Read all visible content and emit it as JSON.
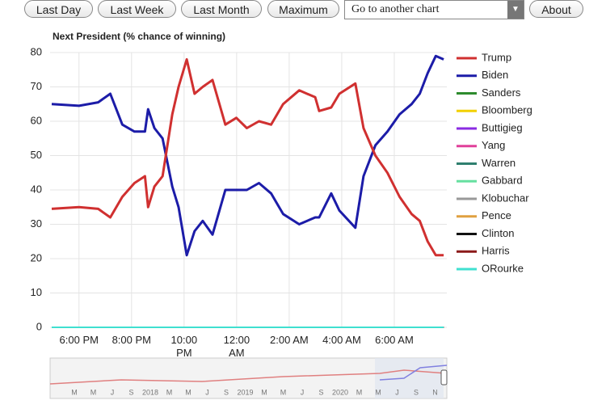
{
  "controls": {
    "buttons": [
      "Last Day",
      "Last Week",
      "Last Month",
      "Maximum"
    ],
    "select": "Go to another chart",
    "about": "About"
  },
  "navigator_labels": [
    "M",
    "M",
    "J",
    "S",
    "2018",
    "M",
    "M",
    "J",
    "S",
    "2019",
    "M",
    "M",
    "J",
    "S",
    "2020",
    "M",
    "M",
    "J",
    "S",
    "N"
  ],
  "chart_data": {
    "type": "line",
    "title": "Next President (% chance of winning)",
    "x": [
      16.96,
      18.0,
      18.73,
      19.19,
      19.65,
      20.11,
      20.51,
      20.63,
      20.87,
      21.18,
      21.55,
      21.79,
      22.1,
      22.4,
      22.71,
      23.08,
      23.57,
      23.99,
      24.39,
      24.85,
      25.31,
      25.77,
      26.38,
      26.99,
      27.14,
      27.6,
      27.91,
      28.52,
      28.83,
      29.28,
      29.74,
      30.2,
      30.66,
      30.97,
      31.27,
      31.58,
      31.88
    ],
    "xlim": [
      16.9,
      32
    ],
    "xticks": [
      {
        "value": 18,
        "label": "6:00 PM"
      },
      {
        "value": 20,
        "label": "8:00 PM"
      },
      {
        "value": 22,
        "label": "10:00\nPM"
      },
      {
        "value": 24,
        "label": "12:00\nAM"
      },
      {
        "value": 26,
        "label": "2:00 AM"
      },
      {
        "value": 28,
        "label": "4:00 AM"
      },
      {
        "value": 30,
        "label": "6:00 AM"
      }
    ],
    "ylim": [
      0,
      80
    ],
    "yticks": [
      0,
      10,
      20,
      30,
      40,
      50,
      60,
      70,
      80
    ],
    "grid": true,
    "legend": "right",
    "series": [
      {
        "name": "Trump",
        "color": "#d03030",
        "values": [
          34.5,
          35,
          34.5,
          32,
          38,
          42,
          44,
          35,
          41,
          44,
          62,
          70,
          78,
          68,
          70,
          72,
          59,
          61,
          58,
          60,
          59,
          65,
          69,
          67,
          63,
          64,
          68,
          71,
          58,
          50,
          45,
          38,
          33,
          31,
          25,
          21,
          21
        ]
      },
      {
        "name": "Biden",
        "color": "#1c1ca8",
        "values": [
          65,
          64.5,
          65.5,
          68,
          59,
          57,
          57,
          63.5,
          58,
          55,
          41,
          35,
          21,
          28,
          31,
          27,
          40,
          40,
          40,
          42,
          39,
          33,
          30,
          32,
          32,
          39,
          34,
          29,
          44,
          53,
          57,
          62,
          65,
          68,
          74,
          79,
          78
        ]
      },
      {
        "name": "Sanders",
        "color": "#2e8b2e",
        "values": [
          0,
          0,
          0,
          0,
          0,
          0,
          0,
          0,
          0,
          0,
          0,
          0,
          0,
          0,
          0,
          0,
          0,
          0,
          0,
          0,
          0,
          0,
          0,
          0,
          0,
          0,
          0,
          0,
          0,
          0,
          0,
          0,
          0,
          0,
          0,
          0,
          0
        ]
      },
      {
        "name": "Bloomberg",
        "color": "#f2d000",
        "values": [
          0,
          0,
          0,
          0,
          0,
          0,
          0,
          0,
          0,
          0,
          0,
          0,
          0,
          0,
          0,
          0,
          0,
          0,
          0,
          0,
          0,
          0,
          0,
          0,
          0,
          0,
          0,
          0,
          0,
          0,
          0,
          0,
          0,
          0,
          0,
          0,
          0
        ]
      },
      {
        "name": "Buttigieg",
        "color": "#8a2be2",
        "values": [
          0,
          0,
          0,
          0,
          0,
          0,
          0,
          0,
          0,
          0,
          0,
          0,
          0,
          0,
          0,
          0,
          0,
          0,
          0,
          0,
          0,
          0,
          0,
          0,
          0,
          0,
          0,
          0,
          0,
          0,
          0,
          0,
          0,
          0,
          0,
          0,
          0
        ]
      },
      {
        "name": "Yang",
        "color": "#e0409a",
        "values": [
          0,
          0,
          0,
          0,
          0,
          0,
          0,
          0,
          0,
          0,
          0,
          0,
          0,
          0,
          0,
          0,
          0,
          0,
          0,
          0,
          0,
          0,
          0,
          0,
          0,
          0,
          0,
          0,
          0,
          0,
          0,
          0,
          0,
          0,
          0,
          0,
          0
        ]
      },
      {
        "name": "Warren",
        "color": "#2f7f6f",
        "values": [
          0,
          0,
          0,
          0,
          0,
          0,
          0,
          0,
          0,
          0,
          0,
          0,
          0,
          0,
          0,
          0,
          0,
          0,
          0,
          0,
          0,
          0,
          0,
          0,
          0,
          0,
          0,
          0,
          0,
          0,
          0,
          0,
          0,
          0,
          0,
          0,
          0
        ]
      },
      {
        "name": "Gabbard",
        "color": "#66e0a0",
        "values": [
          0,
          0,
          0,
          0,
          0,
          0,
          0,
          0,
          0,
          0,
          0,
          0,
          0,
          0,
          0,
          0,
          0,
          0,
          0,
          0,
          0,
          0,
          0,
          0,
          0,
          0,
          0,
          0,
          0,
          0,
          0,
          0,
          0,
          0,
          0,
          0,
          0
        ]
      },
      {
        "name": "Klobuchar",
        "color": "#999999",
        "values": [
          0,
          0,
          0,
          0,
          0,
          0,
          0,
          0,
          0,
          0,
          0,
          0,
          0,
          0,
          0,
          0,
          0,
          0,
          0,
          0,
          0,
          0,
          0,
          0,
          0,
          0,
          0,
          0,
          0,
          0,
          0,
          0,
          0,
          0,
          0,
          0,
          0
        ]
      },
      {
        "name": "Pence",
        "color": "#e0a040",
        "values": [
          0,
          0,
          0,
          0,
          0,
          0,
          0,
          0,
          0,
          0,
          0,
          0,
          0,
          0,
          0,
          0,
          0,
          0,
          0,
          0,
          0,
          0,
          0,
          0,
          0,
          0,
          0,
          0,
          0,
          0,
          0,
          0,
          0,
          0,
          0,
          0,
          0
        ]
      },
      {
        "name": "Clinton",
        "color": "#111111",
        "values": [
          0,
          0,
          0,
          0,
          0,
          0,
          0,
          0,
          0,
          0,
          0,
          0,
          0,
          0,
          0,
          0,
          0,
          0,
          0,
          0,
          0,
          0,
          0,
          0,
          0,
          0,
          0,
          0,
          0,
          0,
          0,
          0,
          0,
          0,
          0,
          0,
          0
        ]
      },
      {
        "name": "Harris",
        "color": "#8b1a1a",
        "values": [
          0,
          0,
          0,
          0,
          0,
          0,
          0,
          0,
          0,
          0,
          0,
          0,
          0,
          0,
          0,
          0,
          0,
          0,
          0,
          0,
          0,
          0,
          0,
          0,
          0,
          0,
          0,
          0,
          0,
          0,
          0,
          0,
          0,
          0,
          0,
          0,
          0
        ]
      },
      {
        "name": "ORourke",
        "color": "#40e0d0",
        "values": [
          0,
          0,
          0,
          0,
          0,
          0,
          0,
          0,
          0,
          0,
          0,
          0,
          0,
          0,
          0,
          0,
          0,
          0,
          0,
          0,
          0,
          0,
          0,
          0,
          0,
          0,
          0,
          0,
          0,
          0,
          0,
          0,
          0,
          0,
          0,
          0,
          0
        ]
      }
    ]
  }
}
